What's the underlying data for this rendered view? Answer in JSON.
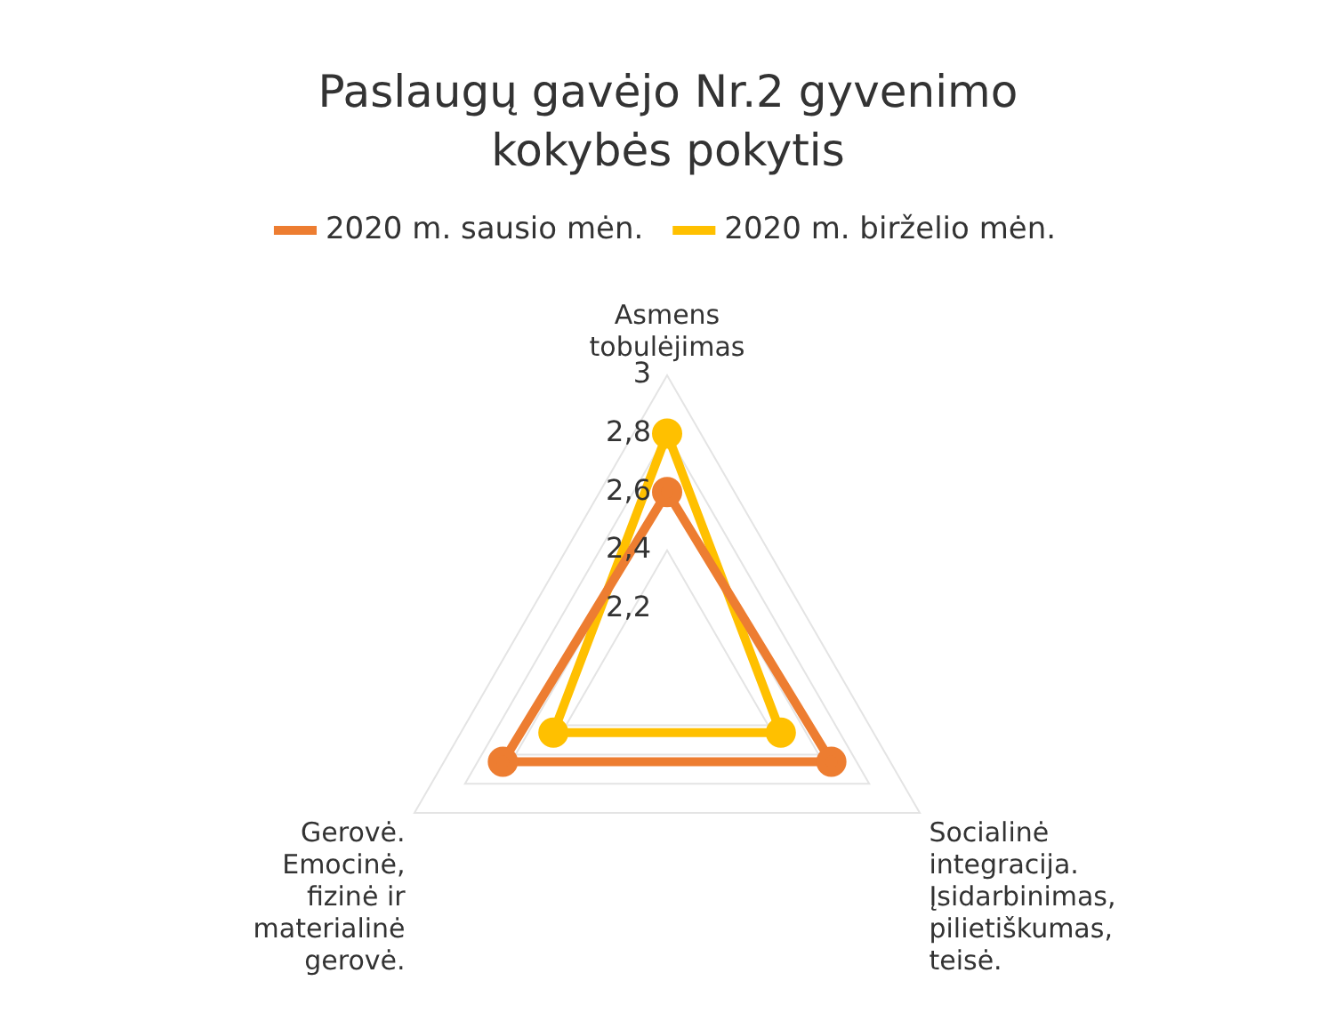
{
  "chart_data": {
    "type": "radar",
    "title": "Paslaugų gavėjo Nr.2 gyvenimo kokybės pokytis",
    "categories": [
      "Asmens tobulėjimas",
      "Socialinė integracija. Įsidarbinimas, pilietiškumas, teisė.",
      "Gerovė. Emocinė, fizinė ir materialinė gerovė."
    ],
    "series": [
      {
        "name": "2020 m. sausio mėn.",
        "color": "#ed7d31",
        "values": [
          2.6,
          2.65,
          2.65
        ]
      },
      {
        "name": "2020 m. birželio mėn.",
        "color": "#ffc000",
        "values": [
          2.8,
          2.45,
          2.45
        ]
      }
    ],
    "ylim": [
      2,
      3
    ],
    "yticks": [
      {
        "value": 2.2,
        "label": "2,2"
      },
      {
        "value": 2.4,
        "label": "2,4"
      },
      {
        "value": 2.6,
        "label": "2,6"
      },
      {
        "value": 2.8,
        "label": "2,8"
      },
      {
        "value": 3,
        "label": "3"
      }
    ],
    "grid": true,
    "legend": "top",
    "marker": "circle",
    "line_style": "solid"
  }
}
